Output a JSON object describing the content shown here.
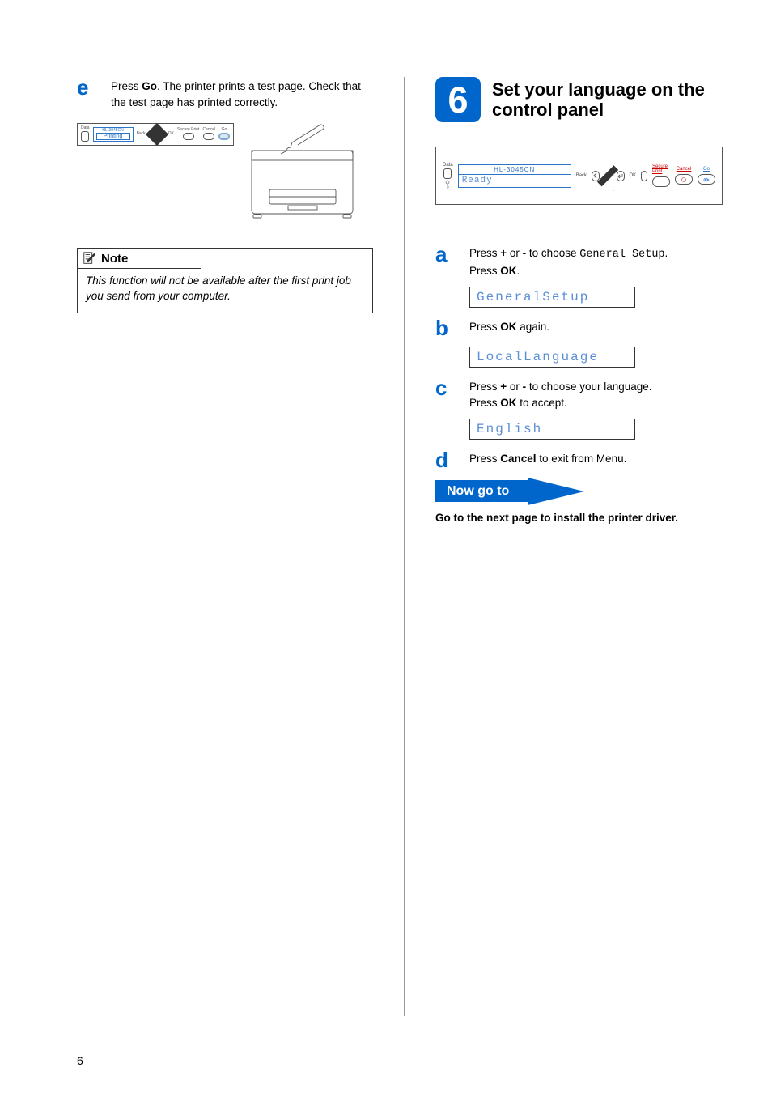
{
  "page_number": "6",
  "left": {
    "step_e": {
      "letter": "e",
      "text_before": "Press ",
      "bold1": "Go",
      "text_mid": ". The printer prints a test page. Check that the test page has printed correctly."
    },
    "panel_small": {
      "model": "HL-3045CN",
      "lcd": "Printing",
      "labels": {
        "data": "Data",
        "back": "Back",
        "ok": "OK",
        "secure": "Secure Print",
        "cancel": "Cancel",
        "go": "Go"
      }
    },
    "note": {
      "title": "Note",
      "body": "This function will not be available after the first print job you send from your computer."
    }
  },
  "right": {
    "section_number": "6",
    "section_title": "Set your language on the control panel",
    "panel_big": {
      "model": "HL-3045CN",
      "lcd": "Ready",
      "labels": {
        "data": "Data",
        "back": "Back",
        "ok": "OK",
        "secure": "Secure Print",
        "cancel": "Cancel",
        "go": "Go"
      }
    },
    "step_a": {
      "letter": "a",
      "t1": "Press ",
      "b1": "+",
      "t2": " or ",
      "b2": "-",
      "t3": " to choose ",
      "mono": "General Setup",
      "t4": ".",
      "line2a": "Press ",
      "line2b": "OK",
      "line2c": ".",
      "lcd": "General Setup"
    },
    "step_b": {
      "letter": "b",
      "t1": "Press ",
      "b1": "OK",
      "t2": " again.",
      "lcd": "Local Language"
    },
    "step_c": {
      "letter": "c",
      "t1": "Press ",
      "b1": "+",
      "t2": " or ",
      "b2": "-",
      "t3": " to choose your language.",
      "line2a": "Press ",
      "line2b": "OK",
      "line2c": " to accept.",
      "lcd": "English"
    },
    "step_d": {
      "letter": "d",
      "t1": "Press ",
      "b1": "Cancel",
      "t2": " to exit from Menu."
    },
    "now_go_to": "Now go to",
    "final": "Go to the next page to install the printer driver."
  }
}
